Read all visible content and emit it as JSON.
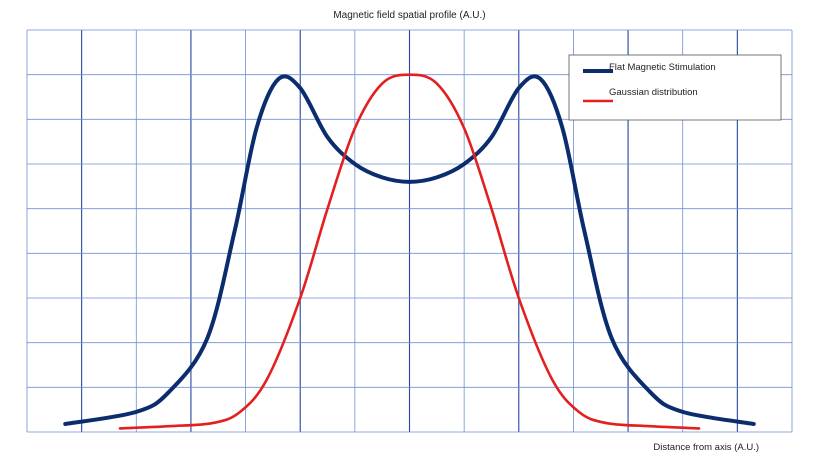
{
  "chart_data": {
    "type": "line",
    "title": "Magnetic field spatial profile (A.U.)",
    "xlabel": "Distance from axis (A.U.)",
    "ylabel": "",
    "xlim": [
      -7,
      7
    ],
    "ylim": [
      0,
      9
    ],
    "grid": true,
    "legend_position": "top-right",
    "series": [
      {
        "name": "Flat Magnetic Stimulation",
        "color": "#0b2d6e",
        "points": [
          [
            -6.3,
            0.18
          ],
          [
            -5.0,
            0.45
          ],
          [
            -4.4,
            0.9
          ],
          [
            -3.7,
            2.1
          ],
          [
            -3.2,
            4.5
          ],
          [
            -2.8,
            6.8
          ],
          [
            -2.4,
            7.9
          ],
          [
            -2.0,
            7.7
          ],
          [
            -1.5,
            6.6
          ],
          [
            -1.0,
            6.0
          ],
          [
            -0.5,
            5.7
          ],
          [
            0.0,
            5.6
          ],
          [
            0.5,
            5.7
          ],
          [
            1.0,
            6.0
          ],
          [
            1.5,
            6.6
          ],
          [
            2.0,
            7.7
          ],
          [
            2.4,
            7.9
          ],
          [
            2.8,
            6.8
          ],
          [
            3.2,
            4.5
          ],
          [
            3.7,
            2.1
          ],
          [
            4.4,
            0.9
          ],
          [
            5.0,
            0.45
          ],
          [
            6.3,
            0.18
          ]
        ]
      },
      {
        "name": "Gaussian distribution",
        "color": "#e31f1f",
        "points": [
          [
            -5.3,
            0.08
          ],
          [
            -4.4,
            0.13
          ],
          [
            -3.6,
            0.2
          ],
          [
            -3.1,
            0.45
          ],
          [
            -2.6,
            1.2
          ],
          [
            -2.0,
            3.0
          ],
          [
            -1.5,
            5.0
          ],
          [
            -1.0,
            6.8
          ],
          [
            -0.5,
            7.8
          ],
          [
            0.0,
            8.0
          ],
          [
            0.5,
            7.8
          ],
          [
            1.0,
            6.8
          ],
          [
            1.5,
            5.0
          ],
          [
            2.0,
            3.0
          ],
          [
            2.6,
            1.2
          ],
          [
            3.1,
            0.45
          ],
          [
            3.6,
            0.2
          ],
          [
            4.4,
            0.13
          ],
          [
            5.3,
            0.08
          ]
        ]
      }
    ]
  }
}
